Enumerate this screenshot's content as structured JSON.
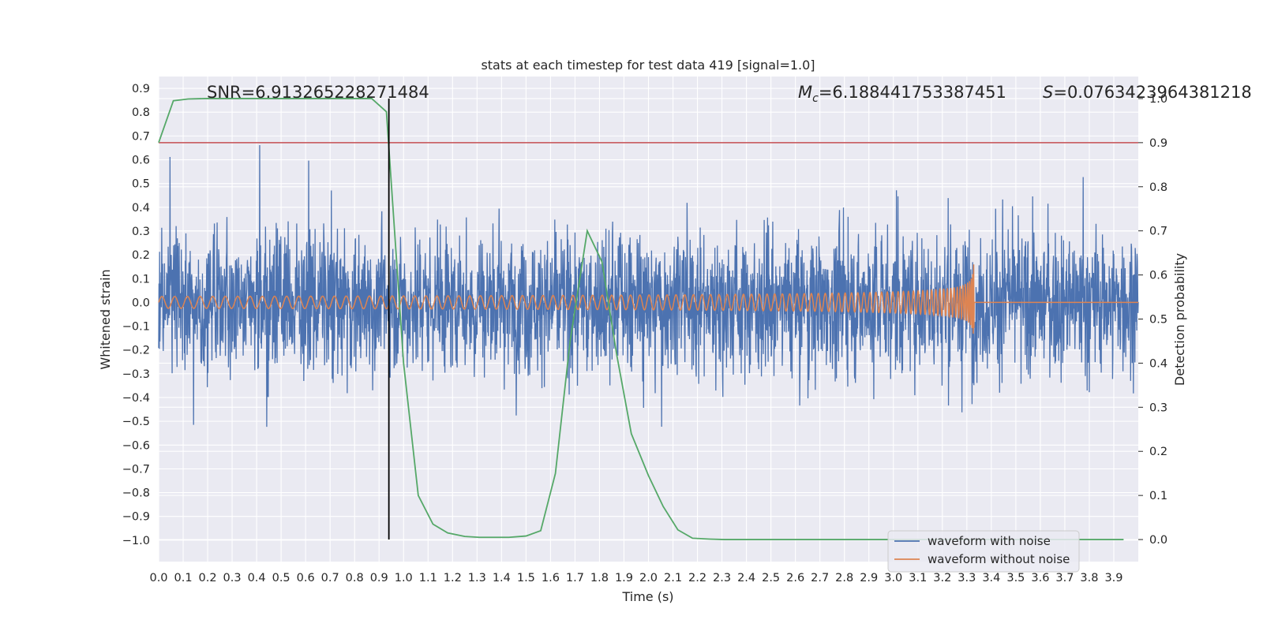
{
  "chart_data": {
    "type": "line",
    "title": "stats at each timestep for test data 419 [signal=1.0]",
    "xlabel": "Time (s)",
    "ylabel": "Whitened strain",
    "y2label": "Detection probability",
    "xlim": [
      0.0,
      4.0
    ],
    "ylim": [
      -1.09,
      0.95
    ],
    "y2lim": [
      -0.05,
      1.05
    ],
    "x_ticks": [
      "0.0",
      "0.1",
      "0.2",
      "0.3",
      "0.4",
      "0.5",
      "0.6",
      "0.7",
      "0.8",
      "0.9",
      "1.0",
      "1.1",
      "1.2",
      "1.3",
      "1.4",
      "1.5",
      "1.6",
      "1.7",
      "1.8",
      "1.9",
      "2.0",
      "2.1",
      "2.2",
      "2.3",
      "2.4",
      "2.5",
      "2.6",
      "2.7",
      "2.8",
      "2.9",
      "3.0",
      "3.1",
      "3.2",
      "3.3",
      "3.4",
      "3.5",
      "3.6",
      "3.7",
      "3.8",
      "3.9"
    ],
    "y_ticks": [
      "0.9",
      "0.8",
      "0.7",
      "0.6",
      "0.5",
      "0.4",
      "0.3",
      "0.2",
      "0.1",
      "0.0",
      "−0.1",
      "−0.2",
      "−0.3",
      "−0.4",
      "−0.5",
      "−0.6",
      "−0.7",
      "−0.8",
      "−0.9",
      "−1.0"
    ],
    "y_tick_values": [
      0.9,
      0.8,
      0.7,
      0.6,
      0.5,
      0.4,
      0.3,
      0.2,
      0.1,
      0.0,
      -0.1,
      -0.2,
      -0.3,
      -0.4,
      -0.5,
      -0.6,
      -0.7,
      -0.8,
      -0.9,
      -1.0
    ],
    "y2_ticks": [
      "1.0",
      "0.9",
      "0.8",
      "0.7",
      "0.6",
      "0.5",
      "0.4",
      "0.3",
      "0.2",
      "0.1",
      "0.0"
    ],
    "y2_tick_values": [
      1.0,
      0.9,
      0.8,
      0.7,
      0.6,
      0.5,
      0.4,
      0.3,
      0.2,
      0.1,
      0.0
    ],
    "annotations": {
      "snr": "SNR=6.913265228271484",
      "mc_symbol": "M",
      "mc_sub": "c",
      "mc_value": "=6.188441753387451",
      "s_symbol": "S",
      "s_value": "=0.0763423964381218"
    },
    "threshold": {
      "value": 0.9,
      "color": "#c44e52"
    },
    "marker_time": 0.94,
    "legend": {
      "position": "bottom-right",
      "entries": [
        {
          "label": "waveform with noise",
          "color": "#4c72b0"
        },
        {
          "label": "waveform without noise",
          "color": "#dd8452"
        }
      ]
    },
    "series": [
      {
        "name": "waveform with noise",
        "axis": "left",
        "color": "#4c72b0",
        "description": "whitened noisy strain, amplitude roughly within -1.0 to 0.86",
        "t_range": [
          0.0,
          4.0
        ],
        "approx_envelope": 0.45
      },
      {
        "name": "waveform without noise",
        "axis": "left",
        "color": "#dd8452",
        "description": "chirp signal with growing frequency and amplitude, merger near 3.33 s",
        "t_range": [
          0.0,
          4.0
        ],
        "merger_time": 3.33,
        "initial_amplitude": 0.025,
        "peak_amplitude": 0.22
      },
      {
        "name": "detection probability",
        "axis": "right",
        "color": "#55a868",
        "x": [
          0.0,
          0.06,
          0.12,
          0.19,
          0.25,
          0.31,
          0.37,
          0.43,
          0.5,
          0.56,
          0.62,
          0.68,
          0.75,
          0.81,
          0.87,
          0.93,
          1.0,
          1.06,
          1.12,
          1.18,
          1.25,
          1.31,
          1.37,
          1.43,
          1.5,
          1.56,
          1.62,
          1.68,
          1.75,
          1.81,
          1.87,
          1.93,
          2.0,
          2.06,
          2.12,
          2.18,
          2.25,
          2.31,
          2.37,
          2.43,
          2.5,
          3.0,
          3.5,
          3.94
        ],
        "values": [
          0.9,
          0.995,
          0.999,
          1.0,
          1.0,
          1.0,
          1.0,
          1.0,
          1.0,
          1.0,
          1.0,
          1.0,
          1.0,
          1.0,
          1.0,
          0.97,
          0.4,
          0.1,
          0.035,
          0.015,
          0.007,
          0.005,
          0.005,
          0.005,
          0.008,
          0.02,
          0.15,
          0.45,
          0.7,
          0.63,
          0.42,
          0.24,
          0.145,
          0.075,
          0.022,
          0.003,
          0.001,
          0.0,
          0.0,
          0.0,
          0.0,
          0.0,
          0.0,
          0.0
        ]
      }
    ]
  }
}
